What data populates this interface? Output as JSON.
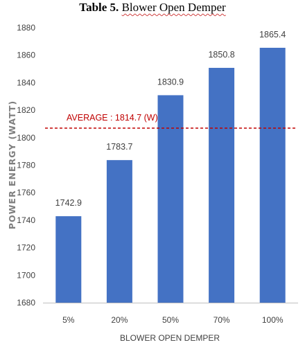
{
  "caption": {
    "label": "Table 5.",
    "title": "Blower Open Demper"
  },
  "chart_data": {
    "type": "bar",
    "categories": [
      "5%",
      "20%",
      "50%",
      "70%",
      "100%"
    ],
    "values": [
      1742.9,
      1783.7,
      1830.9,
      1850.8,
      1865.4
    ],
    "data_labels": [
      "1742.9",
      "1783.7",
      "1830.9",
      "1850.8",
      "1865.4"
    ],
    "xlabel": "BLOWER OPEN DEMPER",
    "ylabel": "POWER ENERGY (WATT)",
    "ylim": [
      1680,
      1880
    ],
    "yticks": [
      1680,
      1700,
      1720,
      1740,
      1760,
      1780,
      1800,
      1820,
      1840,
      1860,
      1880
    ],
    "grid": false,
    "bar_color": "#4472c4",
    "average": {
      "value": 1814.7,
      "label": "AVERAGE : 1814.7 (W)",
      "color": "#c00000",
      "style": "dashed"
    }
  }
}
